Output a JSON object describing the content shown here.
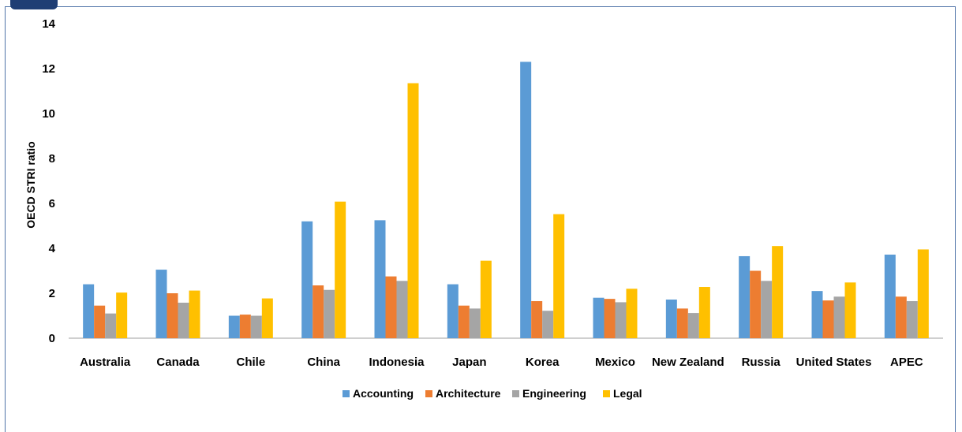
{
  "chart_data": {
    "type": "bar",
    "ylabel": "OECD STRI ratio",
    "xlabel": "",
    "ylim": [
      0,
      14
    ],
    "yticks": [
      0,
      2,
      4,
      6,
      8,
      10,
      12,
      14
    ],
    "categories": [
      "Australia",
      "Canada",
      "Chile",
      "China",
      "Indonesia",
      "Japan",
      "Korea",
      "Mexico",
      "New Zealand",
      "Russia",
      "United States",
      "APEC"
    ],
    "series": [
      {
        "name": "Accounting",
        "color": "#5b9bd5",
        "values": [
          2.4,
          3.05,
          1.0,
          5.2,
          5.25,
          2.4,
          12.3,
          1.8,
          1.72,
          3.65,
          2.1,
          3.72
        ]
      },
      {
        "name": "Architecture",
        "color": "#ed7d31",
        "values": [
          1.45,
          2.0,
          1.05,
          2.35,
          2.75,
          1.45,
          1.65,
          1.75,
          1.32,
          3.0,
          1.68,
          1.85
        ]
      },
      {
        "name": "Engineering",
        "color": "#a5a5a5",
        "values": [
          1.1,
          1.58,
          1.0,
          2.15,
          2.55,
          1.32,
          1.22,
          1.6,
          1.12,
          2.55,
          1.85,
          1.65
        ]
      },
      {
        "name": "Legal",
        "color": "#ffc000",
        "values": [
          2.03,
          2.12,
          1.77,
          6.08,
          11.35,
          3.45,
          5.52,
          2.2,
          2.28,
          4.1,
          2.48,
          3.95
        ]
      }
    ],
    "legend_position": "bottom",
    "grid": false
  }
}
